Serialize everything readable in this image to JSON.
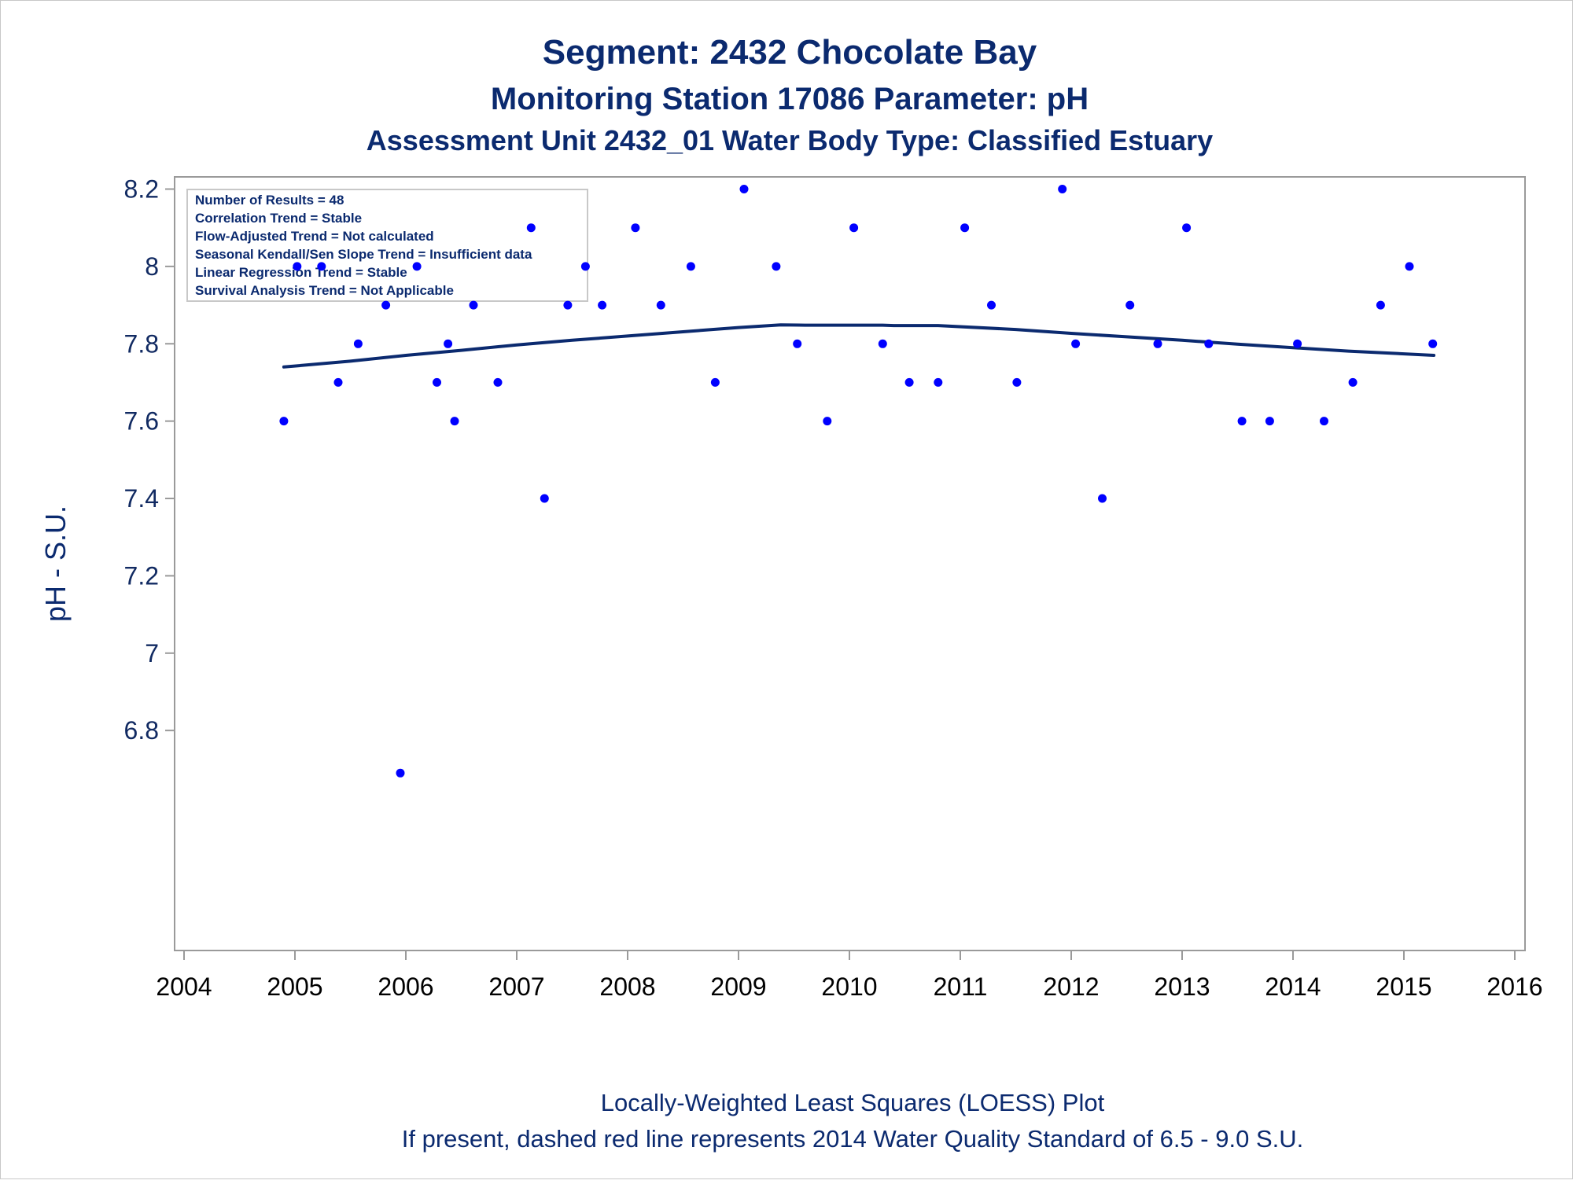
{
  "chart_data": {
    "type": "scatter",
    "title": "Segment: 2432  Chocolate Bay",
    "subtitle": "Monitoring Station 17086 Parameter: pH",
    "subtitle2": "Assessment Unit 2432_01   Water Body Type: Classified Estuary",
    "ylabel": "pH - S.U.",
    "xlabel": "",
    "xlim": [
      2004,
      2016
    ],
    "ylim": [
      6.68,
      8.23
    ],
    "x_ticks": [
      "2004",
      "2005",
      "2006",
      "2007",
      "2008",
      "2009",
      "2010",
      "2011",
      "2012",
      "2013",
      "2014",
      "2015",
      "2016"
    ],
    "y_ticks": [
      "6.8",
      "7",
      "7.2",
      "7.4",
      "7.6",
      "7.8",
      "8",
      "8.2"
    ],
    "grid": false,
    "legend": "none",
    "colors": {
      "points": "#0000ff",
      "loess": "#0b2a6f",
      "text": "#0b2a6f"
    },
    "inset": {
      "position": "top-left",
      "lines": [
        "Number of Results = 48",
        "Correlation Trend = Stable",
        "Flow-Adjusted Trend = Not calculated",
        "Seasonal Kendall/Sen Slope Trend = Insufficient data",
        "Linear Regression Trend = Stable",
        "Survival Analysis Trend = Not Applicable"
      ]
    },
    "series": [
      {
        "type": "scatter",
        "points": [
          {
            "x": 2004.9,
            "y": 7.6
          },
          {
            "x": 2005.02,
            "y": 8.0
          },
          {
            "x": 2005.24,
            "y": 8.0
          },
          {
            "x": 2005.39,
            "y": 7.7
          },
          {
            "x": 2005.57,
            "y": 7.8
          },
          {
            "x": 2005.82,
            "y": 7.9
          },
          {
            "x": 2005.95,
            "y": 6.69
          },
          {
            "x": 2006.1,
            "y": 8.0
          },
          {
            "x": 2006.28,
            "y": 7.7
          },
          {
            "x": 2006.38,
            "y": 7.8
          },
          {
            "x": 2006.44,
            "y": 7.6
          },
          {
            "x": 2006.61,
            "y": 7.9
          },
          {
            "x": 2006.83,
            "y": 7.7
          },
          {
            "x": 2007.13,
            "y": 8.1
          },
          {
            "x": 2007.25,
            "y": 7.4
          },
          {
            "x": 2007.46,
            "y": 7.9
          },
          {
            "x": 2007.62,
            "y": 8.0
          },
          {
            "x": 2007.77,
            "y": 7.9
          },
          {
            "x": 2008.07,
            "y": 8.1
          },
          {
            "x": 2008.3,
            "y": 7.9
          },
          {
            "x": 2008.57,
            "y": 8.0
          },
          {
            "x": 2008.79,
            "y": 7.7
          },
          {
            "x": 2009.05,
            "y": 8.2
          },
          {
            "x": 2009.34,
            "y": 8.0
          },
          {
            "x": 2009.53,
            "y": 7.8
          },
          {
            "x": 2009.8,
            "y": 7.6
          },
          {
            "x": 2010.04,
            "y": 8.1
          },
          {
            "x": 2010.3,
            "y": 7.8
          },
          {
            "x": 2010.54,
            "y": 7.7
          },
          {
            "x": 2010.8,
            "y": 7.7
          },
          {
            "x": 2011.04,
            "y": 8.1
          },
          {
            "x": 2011.28,
            "y": 7.9
          },
          {
            "x": 2011.51,
            "y": 7.7
          },
          {
            "x": 2011.92,
            "y": 8.2
          },
          {
            "x": 2012.04,
            "y": 7.8
          },
          {
            "x": 2012.28,
            "y": 7.4
          },
          {
            "x": 2012.53,
            "y": 7.9
          },
          {
            "x": 2012.78,
            "y": 7.8
          },
          {
            "x": 2013.04,
            "y": 8.1
          },
          {
            "x": 2013.24,
            "y": 7.8
          },
          {
            "x": 2013.54,
            "y": 7.6
          },
          {
            "x": 2013.79,
            "y": 7.6
          },
          {
            "x": 2014.04,
            "y": 7.8
          },
          {
            "x": 2014.28,
            "y": 7.6
          },
          {
            "x": 2014.54,
            "y": 7.7
          },
          {
            "x": 2014.79,
            "y": 7.9
          },
          {
            "x": 2015.05,
            "y": 8.0
          },
          {
            "x": 2015.26,
            "y": 7.8
          }
        ]
      },
      {
        "type": "line",
        "points": [
          {
            "x": 2004.9,
            "y": 7.74
          },
          {
            "x": 2005.5,
            "y": 7.755
          },
          {
            "x": 2006.0,
            "y": 7.77
          },
          {
            "x": 2006.5,
            "y": 7.783
          },
          {
            "x": 2007.0,
            "y": 7.797
          },
          {
            "x": 2007.5,
            "y": 7.809
          },
          {
            "x": 2008.0,
            "y": 7.82
          },
          {
            "x": 2008.5,
            "y": 7.831
          },
          {
            "x": 2009.0,
            "y": 7.842
          },
          {
            "x": 2009.38,
            "y": 7.849
          },
          {
            "x": 2009.6,
            "y": 7.848
          },
          {
            "x": 2010.3,
            "y": 7.848
          },
          {
            "x": 2010.4,
            "y": 7.847
          },
          {
            "x": 2010.8,
            "y": 7.847
          },
          {
            "x": 2011.5,
            "y": 7.837
          },
          {
            "x": 2012.0,
            "y": 7.827
          },
          {
            "x": 2012.5,
            "y": 7.818
          },
          {
            "x": 2013.0,
            "y": 7.809
          },
          {
            "x": 2013.5,
            "y": 7.799
          },
          {
            "x": 2014.0,
            "y": 7.79
          },
          {
            "x": 2014.5,
            "y": 7.781
          },
          {
            "x": 2015.27,
            "y": 7.77
          }
        ]
      }
    ],
    "footnotes": [
      "Locally-Weighted Least Squares (LOESS) Plot",
      "If present, dashed red line represents 2014 Water Quality Standard of 6.5 - 9.0 S.U."
    ]
  }
}
